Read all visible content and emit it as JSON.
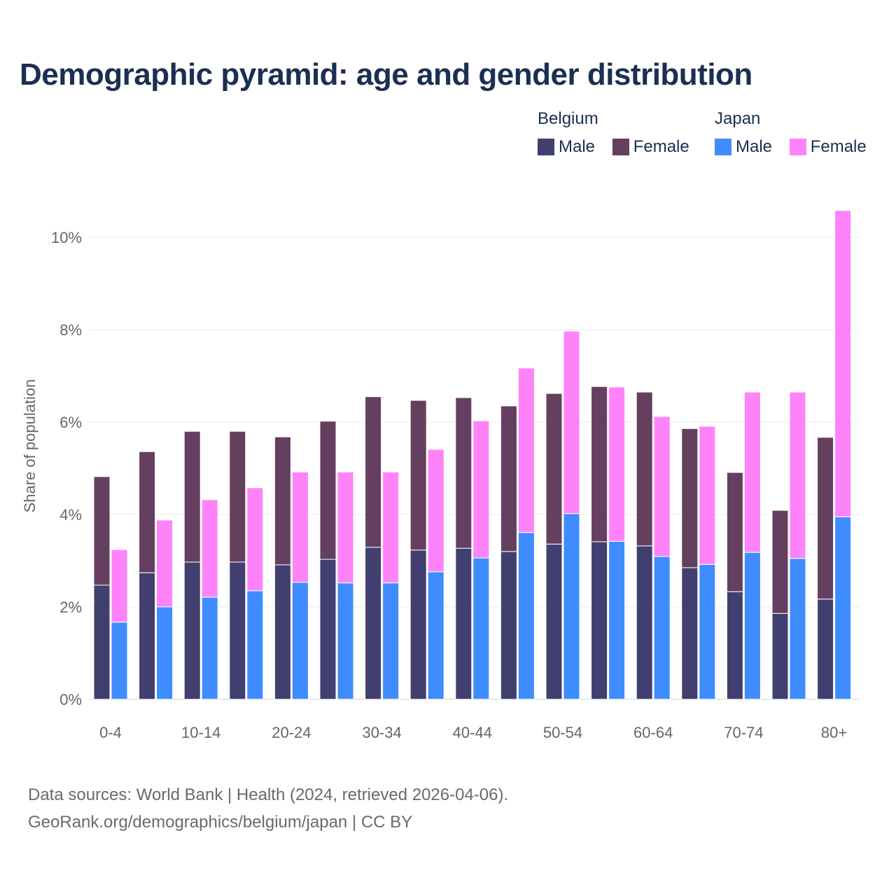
{
  "chart_data": {
    "type": "bar",
    "title": "Demographic pyramid: age and gender distribution",
    "ylabel": "Share of population",
    "xlabel": "",
    "ylim": [
      0,
      10.8
    ],
    "yticks": [
      0,
      2,
      4,
      6,
      8,
      10
    ],
    "ytick_labels": [
      "0%",
      "2%",
      "4%",
      "6%",
      "8%",
      "10%"
    ],
    "categories": [
      "0-4",
      "5-9",
      "10-14",
      "15-19",
      "20-24",
      "25-29",
      "30-34",
      "35-39",
      "40-44",
      "45-49",
      "50-54",
      "55-59",
      "60-64",
      "65-69",
      "70-74",
      "75-79",
      "80+"
    ],
    "xtick_labels_shown": [
      "0-4",
      "10-14",
      "20-24",
      "30-34",
      "40-44",
      "50-54",
      "60-64",
      "70-74",
      "80+"
    ],
    "legend_placement": "top-right",
    "stacked": true,
    "countries": [
      {
        "name": "Belgium",
        "series": [
          {
            "name": "Male",
            "color": "#413f6f",
            "values": [
              2.47,
              2.74,
              2.97,
              2.97,
              2.91,
              3.03,
              3.29,
              3.23,
              3.27,
              3.2,
              3.36,
              3.41,
              3.32,
              2.85,
              2.33,
              1.86,
              2.17
            ]
          },
          {
            "name": "Female",
            "color": "#653f5f",
            "values": [
              2.35,
              2.62,
              2.83,
              2.83,
              2.77,
              2.99,
              3.26,
              3.24,
              3.26,
              3.15,
              3.26,
              3.36,
              3.33,
              3.01,
              2.58,
              2.23,
              3.5
            ]
          }
        ]
      },
      {
        "name": "Japan",
        "series": [
          {
            "name": "Male",
            "color": "#3f8cff",
            "values": [
              1.67,
              2.0,
              2.21,
              2.35,
              2.53,
              2.52,
              2.52,
              2.76,
              3.06,
              3.61,
              4.02,
              3.42,
              3.09,
              2.92,
              3.18,
              3.05,
              3.95
            ]
          },
          {
            "name": "Female",
            "color": "#ff83f8",
            "values": [
              1.57,
              1.88,
              2.11,
              2.23,
              2.39,
              2.4,
              2.4,
              2.65,
              2.97,
              3.56,
              3.95,
              3.34,
              3.03,
              2.99,
              3.47,
              3.6,
              6.63
            ]
          }
        ]
      }
    ]
  },
  "source": {
    "line1": "Data sources: World Bank | Health (2024, retrieved 2026-04-06).",
    "line2": "GeoRank.org/demographics/belgium/japan | CC BY"
  }
}
